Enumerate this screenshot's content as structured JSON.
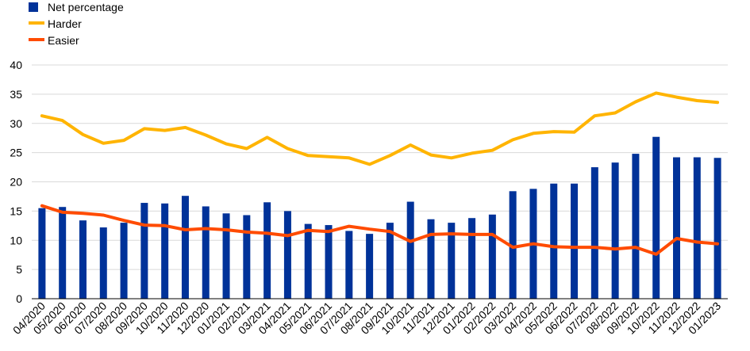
{
  "chart_data": {
    "type": "bar",
    "categories": [
      "04/2020",
      "05/2020",
      "06/2020",
      "07/2020",
      "08/2020",
      "09/2020",
      "10/2020",
      "11/2020",
      "12/2020",
      "01/2021",
      "02/2021",
      "03/2021",
      "04/2021",
      "05/2021",
      "06/2021",
      "07/2021",
      "08/2021",
      "09/2021",
      "10/2021",
      "11/2021",
      "12/2021",
      "01/2022",
      "02/2022",
      "03/2022",
      "04/2022",
      "05/2022",
      "06/2022",
      "07/2022",
      "08/2022",
      "09/2022",
      "10/2022",
      "11/2022",
      "12/2022",
      "01/2023"
    ],
    "series": [
      {
        "name": "Net percentage",
        "type": "bar",
        "color": "#003299",
        "values": [
          15.5,
          15.7,
          13.4,
          12.2,
          13.0,
          16.4,
          16.3,
          17.6,
          15.8,
          14.6,
          14.3,
          16.5,
          15.0,
          12.8,
          12.6,
          11.6,
          11.1,
          13.0,
          16.6,
          13.6,
          13.0,
          13.8,
          14.4,
          18.4,
          18.8,
          19.7,
          19.7,
          22.5,
          23.3,
          24.8,
          27.7,
          24.2,
          24.2,
          24.1
        ]
      },
      {
        "name": "Harder",
        "type": "line",
        "color": "#FFB400",
        "values": [
          31.3,
          30.5,
          28.1,
          26.6,
          27.1,
          29.1,
          28.8,
          29.3,
          28.0,
          26.5,
          25.7,
          27.6,
          25.7,
          24.5,
          24.3,
          24.1,
          23.0,
          24.5,
          26.3,
          24.6,
          24.1,
          24.9,
          25.4,
          27.2,
          28.3,
          28.6,
          28.5,
          31.3,
          31.8,
          33.7,
          35.2,
          34.5,
          33.9,
          33.6
        ]
      },
      {
        "name": "Easier",
        "type": "line",
        "color": "#FF4B00",
        "values": [
          15.9,
          14.8,
          14.6,
          14.3,
          13.4,
          12.6,
          12.5,
          11.8,
          12.0,
          11.8,
          11.4,
          11.2,
          10.8,
          11.7,
          11.5,
          12.4,
          11.9,
          11.5,
          9.8,
          11.0,
          11.1,
          11.0,
          11.0,
          8.8,
          9.4,
          8.9,
          8.8,
          8.8,
          8.5,
          8.8,
          7.6,
          10.3,
          9.7,
          9.4
        ]
      }
    ],
    "ylim": [
      0,
      40
    ],
    "yticks": [
      0,
      5,
      10,
      15,
      20,
      25,
      30,
      35,
      40
    ],
    "grid": true,
    "legend_position": "top-left"
  }
}
